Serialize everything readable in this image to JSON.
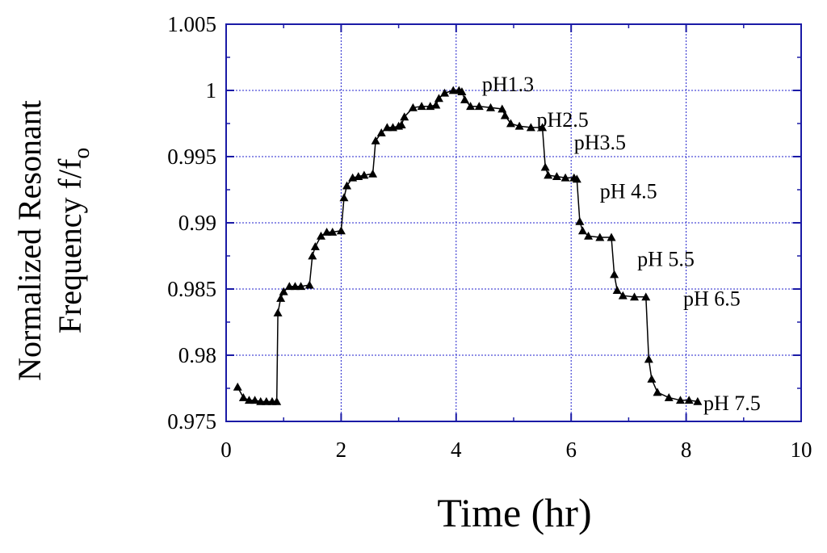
{
  "chart_data": {
    "type": "scatter",
    "title": "",
    "xlabel": "Time (hr)",
    "ylabel_line1": "Normalized Resonant",
    "ylabel_line2": "Frequency f/f",
    "ylabel_subscript": "o",
    "xlim": [
      0,
      10
    ],
    "ylim": [
      0.975,
      1.005
    ],
    "x_ticks": [
      0,
      2,
      4,
      6,
      8,
      10
    ],
    "x_tick_labels": [
      "0",
      "2",
      "4",
      "6",
      "8",
      "10"
    ],
    "y_ticks": [
      0.975,
      0.98,
      0.985,
      0.99,
      0.995,
      1,
      1.005
    ],
    "y_tick_labels": [
      "0.975",
      "0.98",
      "0.985",
      "0.99",
      "0.995",
      "1",
      "1.005"
    ],
    "grid": true,
    "colors": {
      "frame": "#1a1aa6",
      "grid": "#2222cc",
      "data": "#000000"
    },
    "marker": "triangle",
    "series": [
      {
        "points": [
          [
            0.2,
            0.9776
          ],
          [
            0.3,
            0.9768
          ],
          [
            0.4,
            0.9766
          ],
          [
            0.5,
            0.9766
          ],
          [
            0.6,
            0.9765
          ],
          [
            0.7,
            0.9765
          ],
          [
            0.8,
            0.9765
          ],
          [
            0.88,
            0.9765
          ],
          [
            0.9,
            0.9832
          ],
          [
            0.95,
            0.9843
          ],
          [
            1.0,
            0.9848
          ],
          [
            1.1,
            0.9852
          ],
          [
            1.2,
            0.9852
          ],
          [
            1.3,
            0.9852
          ],
          [
            1.45,
            0.9853
          ],
          [
            1.5,
            0.9875
          ],
          [
            1.55,
            0.9882
          ],
          [
            1.65,
            0.989
          ],
          [
            1.75,
            0.9893
          ],
          [
            1.85,
            0.9893
          ],
          [
            2.0,
            0.9894
          ],
          [
            2.05,
            0.9919
          ],
          [
            2.1,
            0.9928
          ],
          [
            2.2,
            0.9934
          ],
          [
            2.3,
            0.9935
          ],
          [
            2.4,
            0.9936
          ],
          [
            2.55,
            0.9937
          ],
          [
            2.6,
            0.9962
          ],
          [
            2.7,
            0.9968
          ],
          [
            2.8,
            0.9972
          ],
          [
            2.9,
            0.9972
          ],
          [
            3.0,
            0.9973
          ],
          [
            3.05,
            0.9974
          ],
          [
            3.1,
            0.998
          ],
          [
            3.25,
            0.9987
          ],
          [
            3.4,
            0.9988
          ],
          [
            3.55,
            0.9988
          ],
          [
            3.65,
            0.9989
          ],
          [
            3.7,
            0.9994
          ],
          [
            3.8,
            0.9998
          ],
          [
            3.95,
            1.0
          ],
          [
            4.05,
            1.0
          ],
          [
            4.1,
            0.9999
          ],
          [
            4.15,
            0.9993
          ],
          [
            4.25,
            0.9988
          ],
          [
            4.4,
            0.9988
          ],
          [
            4.6,
            0.9987
          ],
          [
            4.8,
            0.9986
          ],
          [
            4.85,
            0.9981
          ],
          [
            4.95,
            0.9975
          ],
          [
            5.1,
            0.9973
          ],
          [
            5.3,
            0.9972
          ],
          [
            5.5,
            0.9972
          ],
          [
            5.55,
            0.9942
          ],
          [
            5.6,
            0.9936
          ],
          [
            5.75,
            0.9935
          ],
          [
            5.9,
            0.9934
          ],
          [
            6.05,
            0.9934
          ],
          [
            6.1,
            0.9933
          ],
          [
            6.15,
            0.9901
          ],
          [
            6.2,
            0.9894
          ],
          [
            6.3,
            0.989
          ],
          [
            6.5,
            0.9889
          ],
          [
            6.7,
            0.9889
          ],
          [
            6.75,
            0.9861
          ],
          [
            6.8,
            0.9849
          ],
          [
            6.9,
            0.9845
          ],
          [
            7.1,
            0.9844
          ],
          [
            7.3,
            0.9844
          ],
          [
            7.35,
            0.9797
          ],
          [
            7.4,
            0.9782
          ],
          [
            7.5,
            0.9772
          ],
          [
            7.7,
            0.9768
          ],
          [
            7.9,
            0.9766
          ],
          [
            8.05,
            0.9766
          ],
          [
            8.2,
            0.9765
          ]
        ]
      }
    ],
    "annotations": [
      {
        "text": "pH1.3",
        "x": 4.45,
        "y": 1.0005
      },
      {
        "text": "pH2.5",
        "x": 5.4,
        "y": 0.9978
      },
      {
        "text": "pH3.5",
        "x": 6.05,
        "y": 0.9961
      },
      {
        "text": "pH 4.5",
        "x": 6.5,
        "y": 0.9924
      },
      {
        "text": "pH 5.5",
        "x": 7.15,
        "y": 0.9873
      },
      {
        "text": "pH 6.5",
        "x": 7.95,
        "y": 0.9843
      },
      {
        "text": "pH 7.5",
        "x": 8.3,
        "y": 0.9764
      }
    ]
  }
}
